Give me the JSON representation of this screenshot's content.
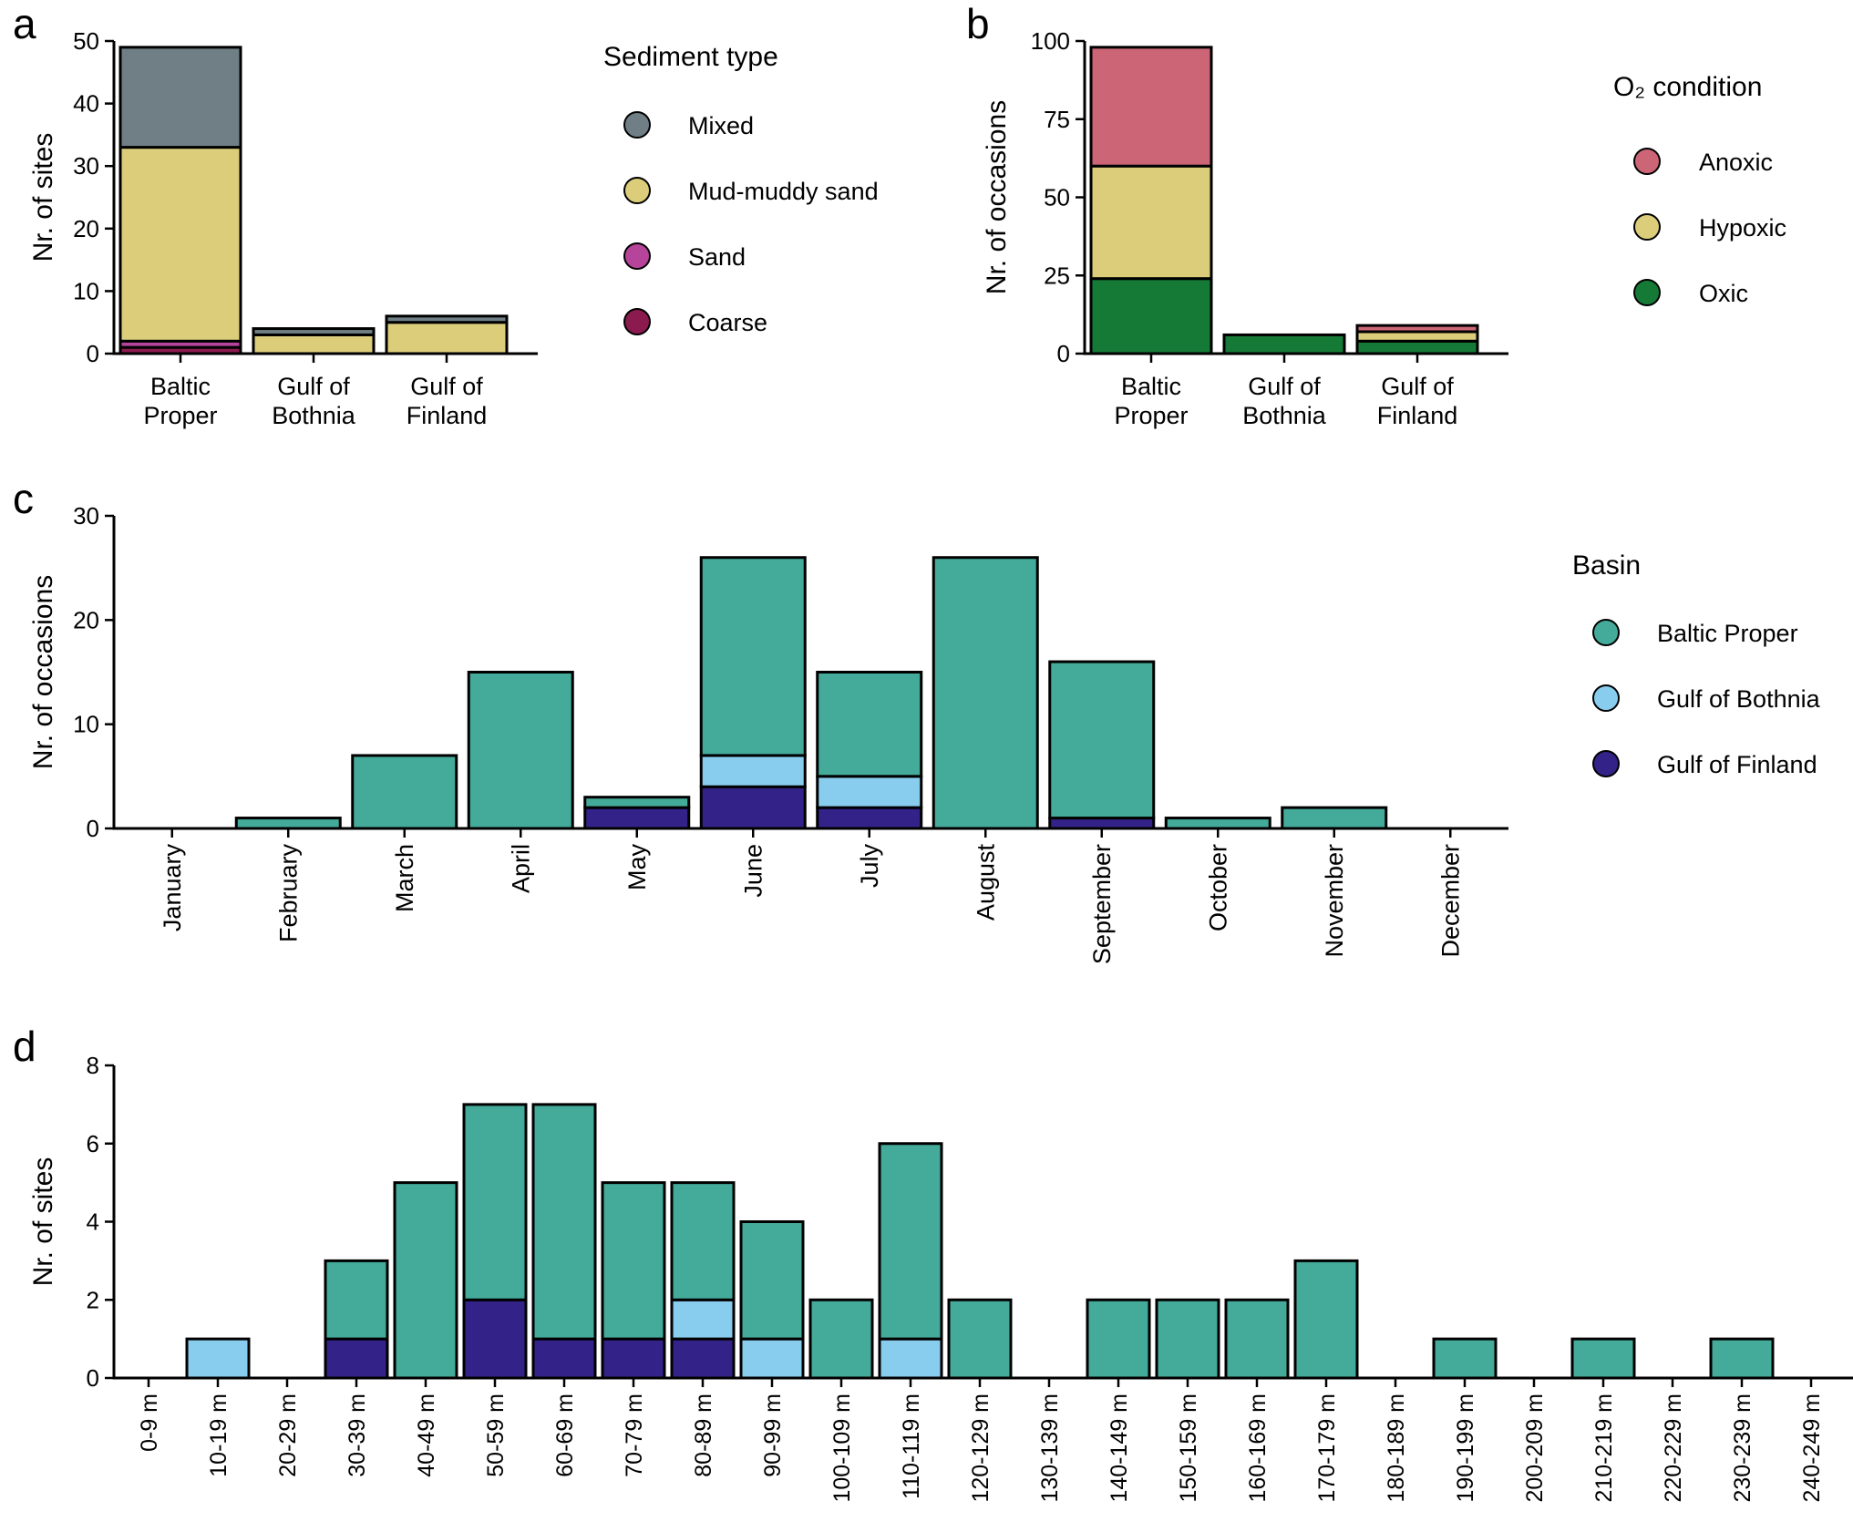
{
  "chart_data": [
    {
      "id": "a",
      "panel_label": "a",
      "type": "bar",
      "stacked": true,
      "categories": [
        "Baltic Proper",
        "Gulf of Bothnia",
        "Gulf of Finland"
      ],
      "category_lines": [
        [
          "Baltic",
          "Proper"
        ],
        [
          "Gulf of",
          "Bothnia"
        ],
        [
          "Gulf of",
          "Finland"
        ]
      ],
      "series": [
        {
          "name": "Coarse",
          "color": "#8b1a4f",
          "values": [
            1,
            0,
            0
          ]
        },
        {
          "name": "Sand",
          "color": "#b5449a",
          "values": [
            1,
            0,
            0
          ]
        },
        {
          "name": "Mud-muddy sand",
          "color": "#dccd7a",
          "values": [
            31,
            3,
            5
          ]
        },
        {
          "name": "Mixed",
          "color": "#6f7f85",
          "values": [
            16,
            1,
            1
          ]
        }
      ],
      "ylabel": "Nr. of sites",
      "ylim": [
        0,
        50
      ],
      "yticks": [
        0,
        10,
        20,
        30,
        40,
        50
      ],
      "legend_title": "Sediment type",
      "legend_order": [
        "Mixed",
        "Mud-muddy sand",
        "Sand",
        "Coarse"
      ]
    },
    {
      "id": "b",
      "panel_label": "b",
      "type": "bar",
      "stacked": true,
      "categories": [
        "Baltic Proper",
        "Gulf of Bothnia",
        "Gulf of Finland"
      ],
      "category_lines": [
        [
          "Baltic",
          "Proper"
        ],
        [
          "Gulf of",
          "Bothnia"
        ],
        [
          "Gulf of",
          "Finland"
        ]
      ],
      "series": [
        {
          "name": "Oxic",
          "color": "#167a37",
          "values": [
            24,
            6,
            4
          ]
        },
        {
          "name": "Hypoxic",
          "color": "#dccd7a",
          "values": [
            36,
            0,
            3
          ]
        },
        {
          "name": "Anoxic",
          "color": "#cc6677",
          "values": [
            38,
            0,
            2
          ]
        }
      ],
      "ylabel": "Nr. of occasions",
      "ylim": [
        0,
        100
      ],
      "yticks": [
        0,
        25,
        50,
        75,
        100
      ],
      "legend_title": "O₂ condition",
      "legend_order": [
        "Anoxic",
        "Hypoxic",
        "Oxic"
      ]
    },
    {
      "id": "c",
      "panel_label": "c",
      "type": "bar",
      "stacked": true,
      "categories": [
        "January",
        "February",
        "March",
        "April",
        "May",
        "June",
        "July",
        "August",
        "September",
        "October",
        "November",
        "December"
      ],
      "series": [
        {
          "name": "Gulf of Finland",
          "color": "#332288",
          "values": [
            0,
            0,
            0,
            0,
            2,
            4,
            2,
            0,
            1,
            0,
            0,
            0
          ]
        },
        {
          "name": "Gulf of Bothnia",
          "color": "#88ccee",
          "values": [
            0,
            0,
            0,
            0,
            0,
            3,
            3,
            0,
            0,
            0,
            0,
            0
          ]
        },
        {
          "name": "Baltic Proper",
          "color": "#44aa99",
          "values": [
            0,
            1,
            7,
            15,
            1,
            19,
            10,
            26,
            15,
            1,
            2,
            0
          ]
        }
      ],
      "ylabel": "Nr. of occasions",
      "ylim": [
        0,
        30
      ],
      "yticks": [
        0,
        10,
        20,
        30
      ],
      "legend_title": "Basin",
      "legend_order": [
        "Baltic Proper",
        "Gulf of Bothnia",
        "Gulf of Finland"
      ]
    },
    {
      "id": "d",
      "panel_label": "d",
      "type": "bar",
      "stacked": true,
      "categories": [
        "0-9 m",
        "10-19 m",
        "20-29 m",
        "30-39 m",
        "40-49 m",
        "50-59 m",
        "60-69 m",
        "70-79 m",
        "80-89 m",
        "90-99 m",
        "100-109 m",
        "110-119 m",
        "120-129 m",
        "130-139 m",
        "140-149 m",
        "150-159 m",
        "160-169 m",
        "170-179 m",
        "180-189 m",
        "190-199 m",
        "200-209 m",
        "210-219 m",
        "220-229 m",
        "230-239 m",
        "240-249 m"
      ],
      "series": [
        {
          "name": "Gulf of Finland",
          "color": "#332288",
          "values": [
            0,
            0,
            0,
            1,
            0,
            2,
            1,
            1,
            1,
            0,
            0,
            0,
            0,
            0,
            0,
            0,
            0,
            0,
            0,
            0,
            0,
            0,
            0,
            0,
            0
          ]
        },
        {
          "name": "Gulf of Bothnia",
          "color": "#88ccee",
          "values": [
            0,
            1,
            0,
            0,
            0,
            0,
            0,
            0,
            1,
            1,
            0,
            1,
            0,
            0,
            0,
            0,
            0,
            0,
            0,
            0,
            0,
            0,
            0,
            0,
            0
          ]
        },
        {
          "name": "Baltic Proper",
          "color": "#44aa99",
          "values": [
            0,
            0,
            0,
            2,
            5,
            5,
            6,
            4,
            3,
            3,
            2,
            5,
            2,
            0,
            2,
            2,
            2,
            3,
            0,
            1,
            0,
            1,
            0,
            1,
            0
          ]
        }
      ],
      "ylabel": "Nr. of sites",
      "ylim": [
        0,
        8
      ],
      "yticks": [
        0,
        2,
        4,
        6,
        8
      ]
    }
  ]
}
